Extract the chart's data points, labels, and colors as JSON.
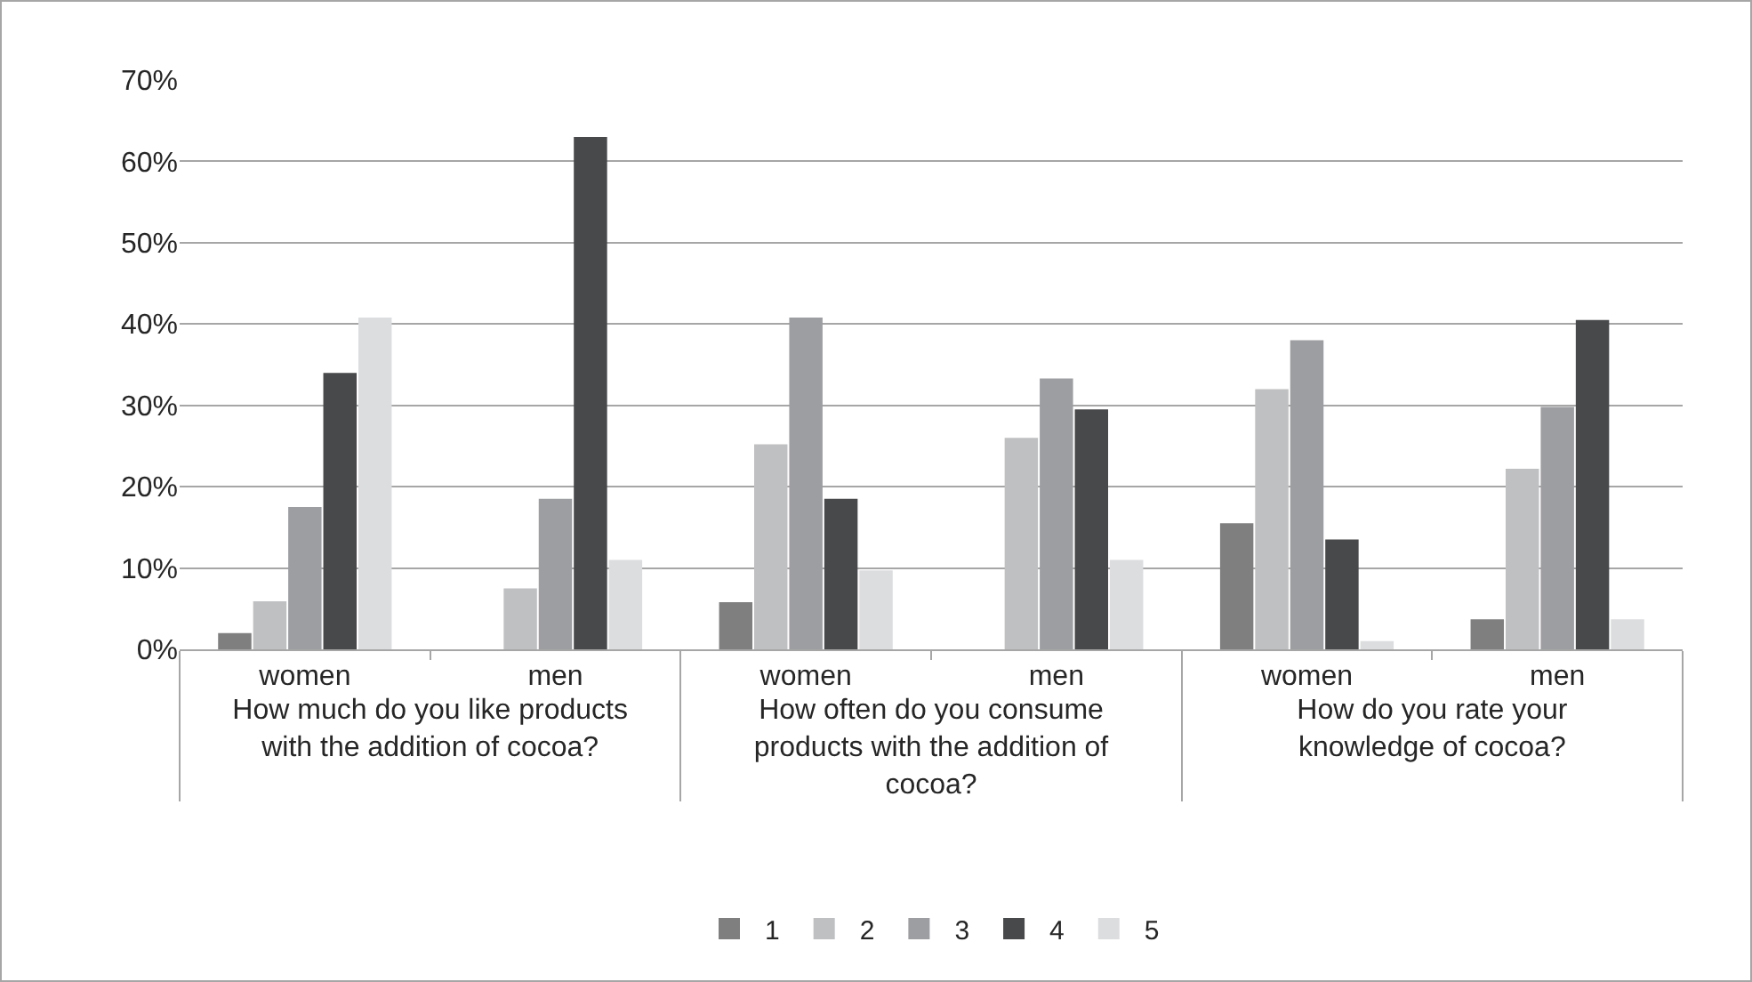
{
  "chart_data": {
    "type": "bar",
    "categories": [
      "women",
      "men",
      "women",
      "men",
      "women",
      "men"
    ],
    "annotations": [
      "How much do you like products with the addition of cocoa?",
      "How often do you consume products with the addition of cocoa?",
      "How do you rate your knowledge of cocoa?"
    ],
    "series": [
      {
        "name": "1",
        "color": "#7f7f80",
        "values": [
          2,
          0,
          5.8,
          0,
          15.5,
          3.7
        ]
      },
      {
        "name": "2",
        "color": "#bfc0c2",
        "values": [
          5.9,
          7.5,
          25.2,
          26,
          32,
          22.2
        ]
      },
      {
        "name": "3",
        "color": "#9d9ea1",
        "values": [
          17.5,
          18.5,
          40.8,
          33.3,
          38,
          29.8
        ]
      },
      {
        "name": "4",
        "color": "#48494b",
        "values": [
          34,
          63,
          18.5,
          29.5,
          13.5,
          40.5
        ]
      },
      {
        "name": "5",
        "color": "#dcdddf",
        "values": [
          40.8,
          11,
          9.7,
          11,
          1,
          3.7
        ]
      }
    ],
    "ylim": [
      0,
      70
    ],
    "yticks": [
      {
        "value": 0,
        "label": "0%"
      },
      {
        "value": 10,
        "label": "10%"
      },
      {
        "value": 20,
        "label": "20%"
      },
      {
        "value": 30,
        "label": "30%"
      },
      {
        "value": 40,
        "label": "40%"
      },
      {
        "value": 50,
        "label": "50%"
      },
      {
        "value": 60,
        "label": "60%"
      },
      {
        "value": 70,
        "label": "70%"
      }
    ],
    "grid": "y",
    "legend": "bottom"
  }
}
